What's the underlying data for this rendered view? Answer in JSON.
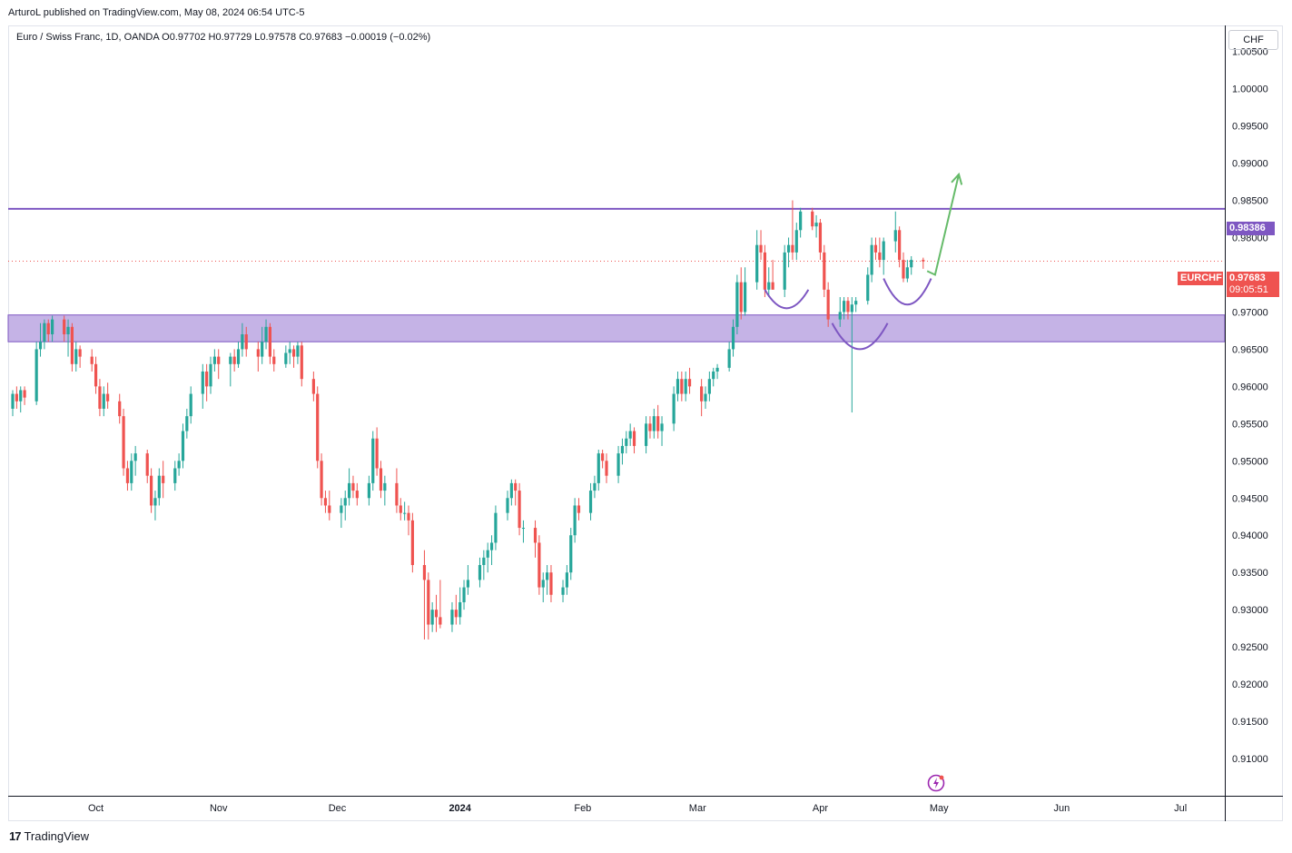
{
  "header": {
    "attribution": "ArturoL published on TradingView.com, May 08, 2024 06:54 UTC-5"
  },
  "legend": {
    "text": "Euro / Swiss Franc, 1D, OANDA  O0.97702  H0.97729  L0.97578  C0.97683  −0.00019 (−0.02%)"
  },
  "axis": {
    "currency": "CHF"
  },
  "tags": {
    "level_value": "0.98386",
    "symbol": "EURCHF",
    "last_price": "0.97683",
    "countdown": "09:05:51"
  },
  "footer": {
    "brand": "TradingView"
  },
  "colors": {
    "up": "#26a69a",
    "down": "#ef5350",
    "level": "#7e57c2",
    "zone_fill": "#c5b3e6",
    "arrow": "#66bb6a"
  },
  "chart_data": {
    "type": "candlestick",
    "title": "Euro / Swiss Franc, 1D, OANDA",
    "ylim": [
      0.905,
      1.0085
    ],
    "y_ticks": [
      "1.00500",
      "1.00000",
      "0.99500",
      "0.99000",
      "0.98500",
      "0.98000",
      "0.97500",
      "0.97000",
      "0.96500",
      "0.96000",
      "0.95500",
      "0.95000",
      "0.94500",
      "0.94000",
      "0.93500",
      "0.93000",
      "0.92500",
      "0.92000",
      "0.91500",
      "0.91000"
    ],
    "x_labels": [
      {
        "label": "Oct",
        "day": 21
      },
      {
        "label": "Nov",
        "day": 52
      },
      {
        "label": "Dec",
        "day": 82
      },
      {
        "label": "2024",
        "day": 113
      },
      {
        "label": "Feb",
        "day": 144
      },
      {
        "label": "Mar",
        "day": 173
      },
      {
        "label": "Apr",
        "day": 204
      },
      {
        "label": "May",
        "day": 234
      },
      {
        "label": "Jun",
        "day": 265
      },
      {
        "label": "Jul",
        "day": 295
      }
    ],
    "resistance_level": 0.98386,
    "last_close": 0.97683,
    "support_zone": [
      0.966,
      0.9696
    ],
    "candles": [
      [
        0,
        0.957,
        0.9595,
        0.956,
        0.959
      ],
      [
        1,
        0.959,
        0.96,
        0.957,
        0.958
      ],
      [
        2,
        0.958,
        0.96,
        0.9565,
        0.9595
      ],
      [
        3,
        0.9595,
        0.96,
        0.9575,
        0.9585
      ],
      [
        6,
        0.958,
        0.966,
        0.9575,
        0.965
      ],
      [
        7,
        0.965,
        0.9685,
        0.964,
        0.966
      ],
      [
        8,
        0.966,
        0.969,
        0.965,
        0.9685
      ],
      [
        9,
        0.9685,
        0.969,
        0.966,
        0.967
      ],
      [
        10,
        0.967,
        0.9695,
        0.966,
        0.969
      ],
      [
        13,
        0.969,
        0.9695,
        0.966,
        0.967
      ],
      [
        14,
        0.967,
        0.969,
        0.964,
        0.968
      ],
      [
        15,
        0.968,
        0.9685,
        0.962,
        0.963
      ],
      [
        16,
        0.963,
        0.966,
        0.962,
        0.965
      ],
      [
        17,
        0.965,
        0.9655,
        0.9625,
        0.964
      ],
      [
        20,
        0.964,
        0.965,
        0.962,
        0.963
      ],
      [
        21,
        0.963,
        0.964,
        0.959,
        0.96
      ],
      [
        22,
        0.96,
        0.961,
        0.956,
        0.957
      ],
      [
        23,
        0.957,
        0.96,
        0.956,
        0.959
      ],
      [
        24,
        0.959,
        0.9605,
        0.957,
        0.958
      ],
      [
        27,
        0.958,
        0.959,
        0.955,
        0.956
      ],
      [
        28,
        0.956,
        0.957,
        0.948,
        0.949
      ],
      [
        29,
        0.949,
        0.95,
        0.946,
        0.947
      ],
      [
        30,
        0.947,
        0.951,
        0.946,
        0.95
      ],
      [
        31,
        0.95,
        0.952,
        0.948,
        0.951
      ],
      [
        34,
        0.951,
        0.9515,
        0.947,
        0.948
      ],
      [
        35,
        0.948,
        0.949,
        0.943,
        0.944
      ],
      [
        36,
        0.944,
        0.946,
        0.942,
        0.945
      ],
      [
        37,
        0.945,
        0.949,
        0.944,
        0.948
      ],
      [
        38,
        0.948,
        0.95,
        0.945,
        0.947
      ],
      [
        41,
        0.947,
        0.95,
        0.946,
        0.949
      ],
      [
        42,
        0.949,
        0.951,
        0.948,
        0.95
      ],
      [
        43,
        0.95,
        0.955,
        0.949,
        0.954
      ],
      [
        44,
        0.954,
        0.957,
        0.953,
        0.956
      ],
      [
        45,
        0.956,
        0.96,
        0.955,
        0.959
      ],
      [
        48,
        0.959,
        0.963,
        0.957,
        0.962
      ],
      [
        49,
        0.962,
        0.963,
        0.958,
        0.96
      ],
      [
        50,
        0.96,
        0.964,
        0.959,
        0.963
      ],
      [
        51,
        0.963,
        0.965,
        0.962,
        0.964
      ],
      [
        52,
        0.964,
        0.965,
        0.961,
        0.963
      ],
      [
        55,
        0.963,
        0.9645,
        0.96,
        0.964
      ],
      [
        56,
        0.964,
        0.965,
        0.962,
        0.963
      ],
      [
        57,
        0.963,
        0.966,
        0.9625,
        0.965
      ],
      [
        58,
        0.965,
        0.9685,
        0.964,
        0.967
      ],
      [
        59,
        0.967,
        0.968,
        0.964,
        0.965
      ],
      [
        62,
        0.965,
        0.966,
        0.962,
        0.964
      ],
      [
        63,
        0.964,
        0.968,
        0.963,
        0.966
      ],
      [
        64,
        0.966,
        0.969,
        0.965,
        0.968
      ],
      [
        65,
        0.968,
        0.9685,
        0.963,
        0.964
      ],
      [
        66,
        0.964,
        0.965,
        0.962,
        0.963
      ],
      [
        69,
        0.963,
        0.9655,
        0.9625,
        0.9645
      ],
      [
        70,
        0.9645,
        0.966,
        0.963,
        0.965
      ],
      [
        71,
        0.965,
        0.9655,
        0.9625,
        0.964
      ],
      [
        72,
        0.964,
        0.966,
        0.963,
        0.9655
      ],
      [
        73,
        0.9655,
        0.966,
        0.96,
        0.961
      ],
      [
        76,
        0.961,
        0.962,
        0.958,
        0.959
      ],
      [
        77,
        0.959,
        0.96,
        0.949,
        0.95
      ],
      [
        78,
        0.95,
        0.951,
        0.944,
        0.945
      ],
      [
        79,
        0.945,
        0.946,
        0.943,
        0.944
      ],
      [
        80,
        0.944,
        0.946,
        0.942,
        0.943
      ],
      [
        83,
        0.943,
        0.945,
        0.941,
        0.944
      ],
      [
        84,
        0.944,
        0.946,
        0.942,
        0.945
      ],
      [
        85,
        0.945,
        0.949,
        0.944,
        0.947
      ],
      [
        86,
        0.947,
        0.948,
        0.945,
        0.946
      ],
      [
        87,
        0.946,
        0.947,
        0.944,
        0.945
      ],
      [
        90,
        0.945,
        0.948,
        0.944,
        0.947
      ],
      [
        91,
        0.947,
        0.954,
        0.946,
        0.953
      ],
      [
        92,
        0.953,
        0.9545,
        0.948,
        0.949
      ],
      [
        93,
        0.949,
        0.95,
        0.945,
        0.946
      ],
      [
        94,
        0.946,
        0.948,
        0.944,
        0.947
      ],
      [
        97,
        0.947,
        0.949,
        0.943,
        0.944
      ],
      [
        98,
        0.944,
        0.945,
        0.942,
        0.943
      ],
      [
        99,
        0.943,
        0.9445,
        0.942,
        0.943
      ],
      [
        100,
        0.943,
        0.944,
        0.94,
        0.942
      ],
      [
        101,
        0.942,
        0.943,
        0.935,
        0.936
      ],
      [
        104,
        0.936,
        0.938,
        0.926,
        0.934
      ],
      [
        105,
        0.934,
        0.935,
        0.926,
        0.928
      ],
      [
        106,
        0.928,
        0.931,
        0.927,
        0.93
      ],
      [
        107,
        0.93,
        0.932,
        0.927,
        0.929
      ],
      [
        108,
        0.929,
        0.934,
        0.9275,
        0.928
      ],
      [
        111,
        0.928,
        0.931,
        0.927,
        0.93
      ],
      [
        112,
        0.93,
        0.932,
        0.928,
        0.929
      ],
      [
        113,
        0.929,
        0.933,
        0.928,
        0.931
      ],
      [
        114,
        0.931,
        0.934,
        0.93,
        0.933
      ],
      [
        115,
        0.933,
        0.936,
        0.932,
        0.934
      ],
      [
        118,
        0.934,
        0.937,
        0.933,
        0.936
      ],
      [
        119,
        0.936,
        0.938,
        0.934,
        0.937
      ],
      [
        120,
        0.937,
        0.939,
        0.935,
        0.938
      ],
      [
        121,
        0.938,
        0.94,
        0.936,
        0.939
      ],
      [
        122,
        0.939,
        0.944,
        0.938,
        0.943
      ],
      [
        125,
        0.943,
        0.946,
        0.942,
        0.945
      ],
      [
        126,
        0.945,
        0.9475,
        0.944,
        0.947
      ],
      [
        127,
        0.947,
        0.9475,
        0.944,
        0.946
      ],
      [
        128,
        0.946,
        0.947,
        0.94,
        0.941
      ],
      [
        129,
        0.941,
        0.942,
        0.939,
        0.941
      ],
      [
        132,
        0.941,
        0.942,
        0.937,
        0.939
      ],
      [
        133,
        0.939,
        0.94,
        0.932,
        0.933
      ],
      [
        134,
        0.933,
        0.935,
        0.931,
        0.934
      ],
      [
        135,
        0.934,
        0.936,
        0.932,
        0.935
      ],
      [
        136,
        0.935,
        0.936,
        0.931,
        0.932
      ],
      [
        139,
        0.932,
        0.934,
        0.931,
        0.933
      ],
      [
        140,
        0.933,
        0.936,
        0.932,
        0.935
      ],
      [
        141,
        0.935,
        0.941,
        0.934,
        0.94
      ],
      [
        142,
        0.94,
        0.945,
        0.939,
        0.944
      ],
      [
        143,
        0.944,
        0.945,
        0.942,
        0.943
      ],
      [
        146,
        0.943,
        0.947,
        0.942,
        0.946
      ],
      [
        147,
        0.946,
        0.948,
        0.945,
        0.947
      ],
      [
        148,
        0.947,
        0.9515,
        0.946,
        0.951
      ],
      [
        149,
        0.951,
        0.9515,
        0.949,
        0.95
      ],
      [
        150,
        0.95,
        0.951,
        0.947,
        0.948
      ],
      [
        153,
        0.948,
        0.952,
        0.947,
        0.951
      ],
      [
        154,
        0.951,
        0.953,
        0.9495,
        0.952
      ],
      [
        155,
        0.952,
        0.954,
        0.951,
        0.953
      ],
      [
        156,
        0.953,
        0.955,
        0.952,
        0.954
      ],
      [
        157,
        0.954,
        0.9545,
        0.951,
        0.952
      ],
      [
        160,
        0.952,
        0.956,
        0.951,
        0.955
      ],
      [
        161,
        0.955,
        0.956,
        0.953,
        0.954
      ],
      [
        162,
        0.954,
        0.957,
        0.953,
        0.956
      ],
      [
        163,
        0.956,
        0.9575,
        0.953,
        0.954
      ],
      [
        164,
        0.954,
        0.956,
        0.952,
        0.955
      ],
      [
        167,
        0.955,
        0.96,
        0.954,
        0.959
      ],
      [
        168,
        0.959,
        0.962,
        0.958,
        0.961
      ],
      [
        169,
        0.961,
        0.962,
        0.958,
        0.959
      ],
      [
        170,
        0.959,
        0.962,
        0.958,
        0.961
      ],
      [
        171,
        0.961,
        0.9625,
        0.959,
        0.96
      ],
      [
        174,
        0.96,
        0.961,
        0.956,
        0.958
      ],
      [
        175,
        0.958,
        0.96,
        0.957,
        0.959
      ],
      [
        176,
        0.959,
        0.962,
        0.958,
        0.961
      ],
      [
        177,
        0.961,
        0.9625,
        0.96,
        0.962
      ],
      [
        178,
        0.962,
        0.963,
        0.961,
        0.9625
      ],
      [
        181,
        0.9625,
        0.966,
        0.962,
        0.965
      ],
      [
        182,
        0.965,
        0.969,
        0.964,
        0.968
      ],
      [
        183,
        0.968,
        0.975,
        0.967,
        0.974
      ],
      [
        184,
        0.974,
        0.976,
        0.969,
        0.97
      ],
      [
        185,
        0.97,
        0.976,
        0.9695,
        0.974
      ],
      [
        188,
        0.974,
        0.981,
        0.973,
        0.979
      ],
      [
        189,
        0.979,
        0.981,
        0.977,
        0.978
      ],
      [
        190,
        0.978,
        0.979,
        0.972,
        0.973
      ],
      [
        191,
        0.973,
        0.976,
        0.972,
        0.974
      ],
      [
        192,
        0.974,
        0.977,
        0.973,
        0.973
      ],
      [
        195,
        0.973,
        0.979,
        0.972,
        0.978
      ],
      [
        196,
        0.978,
        0.98,
        0.976,
        0.979
      ],
      [
        197,
        0.979,
        0.985,
        0.977,
        0.978
      ],
      [
        198,
        0.978,
        0.982,
        0.977,
        0.981
      ],
      [
        199,
        0.981,
        0.984,
        0.98,
        0.9835
      ],
      [
        202,
        0.9835,
        0.984,
        0.981,
        0.9815
      ],
      [
        203,
        0.9815,
        0.983,
        0.98,
        0.982
      ],
      [
        204,
        0.982,
        0.9825,
        0.977,
        0.978
      ],
      [
        205,
        0.978,
        0.979,
        0.972,
        0.973
      ],
      [
        206,
        0.973,
        0.974,
        0.968,
        0.969
      ],
      [
        209,
        0.969,
        0.972,
        0.968,
        0.97
      ],
      [
        210,
        0.97,
        0.972,
        0.969,
        0.9715
      ],
      [
        211,
        0.9715,
        0.972,
        0.969,
        0.97
      ],
      [
        212,
        0.97,
        0.972,
        0.9565,
        0.971
      ],
      [
        213,
        0.971,
        0.972,
        0.97,
        0.9715
      ],
      [
        216,
        0.9715,
        0.976,
        0.971,
        0.975
      ],
      [
        217,
        0.975,
        0.98,
        0.974,
        0.979
      ],
      [
        218,
        0.979,
        0.98,
        0.977,
        0.978
      ],
      [
        219,
        0.978,
        0.98,
        0.976,
        0.977
      ],
      [
        220,
        0.977,
        0.98,
        0.975,
        0.9795
      ],
      [
        223,
        0.9795,
        0.9835,
        0.978,
        0.981
      ],
      [
        224,
        0.981,
        0.9815,
        0.976,
        0.977
      ],
      [
        225,
        0.977,
        0.978,
        0.974,
        0.9745
      ],
      [
        226,
        0.9745,
        0.977,
        0.974,
        0.976
      ],
      [
        227,
        0.976,
        0.9775,
        0.975,
        0.977
      ],
      [
        230,
        0.977,
        0.9773,
        0.9758,
        0.9768
      ]
    ],
    "annotations": {
      "arcs": [
        {
          "from": [
            190,
            0.973
          ],
          "to": [
            201,
            0.973
          ],
          "depth": 0.0025
        },
        {
          "from": [
            207,
            0.9685
          ],
          "to": [
            221,
            0.9685
          ],
          "depth": 0.0035
        },
        {
          "from": [
            220,
            0.9745
          ],
          "to": [
            232,
            0.9745
          ],
          "depth": 0.0035
        }
      ],
      "arrow": {
        "points": [
          [
            231,
            0.9755
          ],
          [
            233,
            0.975
          ],
          [
            239,
            0.9885
          ]
        ]
      }
    }
  }
}
